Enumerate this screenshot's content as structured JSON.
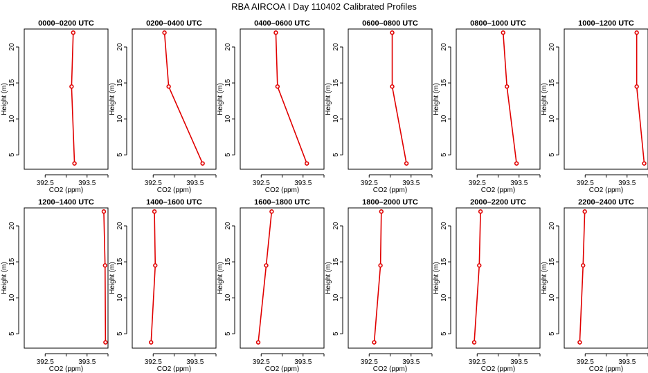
{
  "figure_title": "RBA AIRCOA I  Day 110402  Calibrated Profiles",
  "chart_data": [
    {
      "type": "line",
      "title": "0000–0200 UTC",
      "xlabel": "CO2 (ppm)",
      "ylabel": "Height (m)",
      "xlim": [
        392,
        394
      ],
      "ylim": [
        3,
        22.5
      ],
      "xticks": [
        392.5,
        393.5
      ],
      "yticks": [
        5,
        10,
        15,
        20
      ],
      "series": [
        {
          "x": [
            393.17,
            393.13,
            393.2
          ],
          "y": [
            22,
            14.5,
            3.8
          ]
        }
      ]
    },
    {
      "type": "line",
      "title": "0200–0400 UTC",
      "xlabel": "CO2 (ppm)",
      "ylabel": "Height (m)",
      "xlim": [
        392,
        394
      ],
      "ylim": [
        3,
        22.5
      ],
      "xticks": [
        392.5,
        393.5
      ],
      "yticks": [
        5,
        10,
        15,
        20
      ],
      "series": [
        {
          "x": [
            392.77,
            392.87,
            393.68
          ],
          "y": [
            22,
            14.5,
            3.8
          ]
        }
      ]
    },
    {
      "type": "line",
      "title": "0400–0600 UTC",
      "xlabel": "CO2 (ppm)",
      "ylabel": "Height (m)",
      "xlim": [
        392,
        394
      ],
      "ylim": [
        3,
        22.5
      ],
      "xticks": [
        392.5,
        393.5
      ],
      "yticks": [
        5,
        10,
        15,
        20
      ],
      "series": [
        {
          "x": [
            392.85,
            392.89,
            393.59
          ],
          "y": [
            22,
            14.5,
            3.8
          ]
        }
      ]
    },
    {
      "type": "line",
      "title": "0600–0800 UTC",
      "xlabel": "CO2 (ppm)",
      "ylabel": "Height (m)",
      "xlim": [
        392,
        394
      ],
      "ylim": [
        3,
        22.5
      ],
      "xticks": [
        392.5,
        393.5
      ],
      "yticks": [
        5,
        10,
        15,
        20
      ],
      "series": [
        {
          "x": [
            393.05,
            393.05,
            393.39
          ],
          "y": [
            22,
            14.5,
            3.8
          ]
        }
      ]
    },
    {
      "type": "line",
      "title": "0800–1000 UTC",
      "xlabel": "CO2 (ppm)",
      "ylabel": "Height (m)",
      "xlim": [
        392,
        394
      ],
      "ylim": [
        3,
        22.5
      ],
      "xticks": [
        392.5,
        393.5
      ],
      "yticks": [
        5,
        10,
        15,
        20
      ],
      "series": [
        {
          "x": [
            393.12,
            393.21,
            393.44
          ],
          "y": [
            22,
            14.5,
            3.8
          ]
        }
      ]
    },
    {
      "type": "line",
      "title": "1000–1200 UTC",
      "xlabel": "CO2 (ppm)",
      "ylabel": "Height (m)",
      "xlim": [
        392,
        394
      ],
      "ylim": [
        3,
        22.5
      ],
      "xticks": [
        392.5,
        393.5
      ],
      "yticks": [
        5,
        10,
        15,
        20
      ],
      "series": [
        {
          "x": [
            393.73,
            393.73,
            393.91
          ],
          "y": [
            22,
            14.5,
            3.8
          ]
        }
      ]
    },
    {
      "type": "line",
      "title": "1200–1400 UTC",
      "xlabel": "CO2 (ppm)",
      "ylabel": "Height (m)",
      "xlim": [
        392,
        394
      ],
      "ylim": [
        3,
        22.5
      ],
      "xticks": [
        392.5,
        393.5
      ],
      "yticks": [
        5,
        10,
        15,
        20
      ],
      "series": [
        {
          "x": [
            393.9,
            393.93,
            393.94
          ],
          "y": [
            22,
            14.5,
            3.8
          ]
        }
      ]
    },
    {
      "type": "line",
      "title": "1400–1600 UTC",
      "xlabel": "CO2 (ppm)",
      "ylabel": "Height (m)",
      "xlim": [
        392,
        394
      ],
      "ylim": [
        3,
        22.5
      ],
      "xticks": [
        392.5,
        393.5
      ],
      "yticks": [
        5,
        10,
        15,
        20
      ],
      "series": [
        {
          "x": [
            392.53,
            392.55,
            392.45
          ],
          "y": [
            22,
            14.5,
            3.8
          ]
        }
      ]
    },
    {
      "type": "line",
      "title": "1600–1800 UTC",
      "xlabel": "CO2 (ppm)",
      "ylabel": "Height (m)",
      "xlim": [
        392,
        394
      ],
      "ylim": [
        3,
        22.5
      ],
      "xticks": [
        392.5,
        393.5
      ],
      "yticks": [
        5,
        10,
        15,
        20
      ],
      "series": [
        {
          "x": [
            392.75,
            392.62,
            392.43
          ],
          "y": [
            22,
            14.5,
            3.8
          ]
        }
      ]
    },
    {
      "type": "line",
      "title": "1800–2000 UTC",
      "xlabel": "CO2 (ppm)",
      "ylabel": "Height (m)",
      "xlim": [
        392,
        394
      ],
      "ylim": [
        3,
        22.5
      ],
      "xticks": [
        392.5,
        393.5
      ],
      "yticks": [
        5,
        10,
        15,
        20
      ],
      "series": [
        {
          "x": [
            392.79,
            392.77,
            392.62
          ],
          "y": [
            22,
            14.5,
            3.8
          ]
        }
      ]
    },
    {
      "type": "line",
      "title": "2000–2200 UTC",
      "xlabel": "CO2 (ppm)",
      "ylabel": "Height (m)",
      "xlim": [
        392,
        394
      ],
      "ylim": [
        3,
        22.5
      ],
      "xticks": [
        392.5,
        393.5
      ],
      "yticks": [
        5,
        10,
        15,
        20
      ],
      "series": [
        {
          "x": [
            392.58,
            392.55,
            392.43
          ],
          "y": [
            22,
            14.5,
            3.8
          ]
        }
      ]
    },
    {
      "type": "line",
      "title": "2200–2400 UTC",
      "xlabel": "CO2 (ppm)",
      "ylabel": "Height (m)",
      "xlim": [
        392,
        394
      ],
      "ylim": [
        3,
        22.5
      ],
      "xticks": [
        392.5,
        393.5
      ],
      "yticks": [
        5,
        10,
        15,
        20
      ],
      "series": [
        {
          "x": [
            392.49,
            392.45,
            392.37
          ],
          "y": [
            22,
            14.5,
            3.8
          ]
        }
      ]
    }
  ]
}
